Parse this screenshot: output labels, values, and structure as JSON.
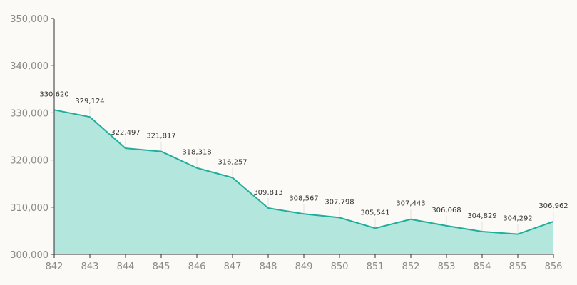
{
  "chart_data": {
    "type": "area",
    "title": "",
    "xlabel": "",
    "ylabel": "",
    "x": [
      842,
      843,
      844,
      845,
      846,
      847,
      848,
      849,
      850,
      851,
      852,
      853,
      854,
      855,
      856
    ],
    "x_tick_labels": [
      "842",
      "843",
      "844",
      "845",
      "846",
      "847",
      "848",
      "849",
      "850",
      "851",
      "852",
      "853",
      "854",
      "855",
      "856"
    ],
    "series": [
      {
        "values": [
          330620,
          329124,
          322497,
          321817,
          318318,
          316257,
          309813,
          308567,
          307798,
          305541,
          307443,
          306068,
          304829,
          304292,
          306962
        ],
        "labels": [
          "330,620",
          "329,124",
          "322,497",
          "321,817",
          "318,318",
          "316,257",
          "309,813",
          "308,567",
          "307,798",
          "305,541",
          "307,443",
          "306,068",
          "304,829",
          "304,292",
          "306,962"
        ]
      }
    ],
    "ylim": [
      300000,
      350000
    ],
    "y_ticks": [
      300000,
      310000,
      320000,
      330000,
      340000,
      350000
    ],
    "y_tick_labels": [
      "300,000",
      "310,000",
      "320,000",
      "330,000",
      "340,000",
      "350,000"
    ],
    "grid": false,
    "legend": "none",
    "colors": {
      "line": "#1fae9c",
      "fill": "#b3e6dc",
      "axis": "#333333"
    }
  }
}
